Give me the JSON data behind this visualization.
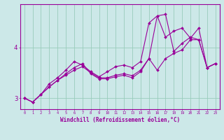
{
  "xlabel": "Windchill (Refroidissement éolien,°C)",
  "background_color": "#cce8e8",
  "grid_color": "#99ccbb",
  "line_color": "#990099",
  "xlim": [
    -0.5,
    23.5
  ],
  "ylim": [
    2.78,
    4.85
  ],
  "x_ticks": [
    0,
    1,
    2,
    3,
    4,
    5,
    6,
    7,
    8,
    9,
    10,
    11,
    12,
    13,
    14,
    15,
    16,
    17,
    18,
    19,
    20,
    21,
    22,
    23
  ],
  "y_ticks": [
    3,
    4
  ],
  "line1_y": [
    3.0,
    2.92,
    3.07,
    3.22,
    3.35,
    3.45,
    3.55,
    3.62,
    3.5,
    3.4,
    3.4,
    3.45,
    3.48,
    3.44,
    3.55,
    3.78,
    3.55,
    3.78,
    3.88,
    3.95,
    4.15,
    4.15,
    3.6,
    3.68
  ],
  "line2_y": [
    3.0,
    2.92,
    3.07,
    3.28,
    3.4,
    3.55,
    3.72,
    3.65,
    3.52,
    3.42,
    3.52,
    3.62,
    3.65,
    3.6,
    3.72,
    4.48,
    4.62,
    4.2,
    4.32,
    4.38,
    4.18,
    4.38,
    3.6,
    3.68
  ],
  "line3_y": [
    3.0,
    2.92,
    3.07,
    3.22,
    3.35,
    3.48,
    3.6,
    3.68,
    3.48,
    3.38,
    3.38,
    3.42,
    3.45,
    3.4,
    3.52,
    3.78,
    4.62,
    4.65,
    3.92,
    4.08,
    4.2,
    4.15,
    3.6,
    3.68
  ]
}
